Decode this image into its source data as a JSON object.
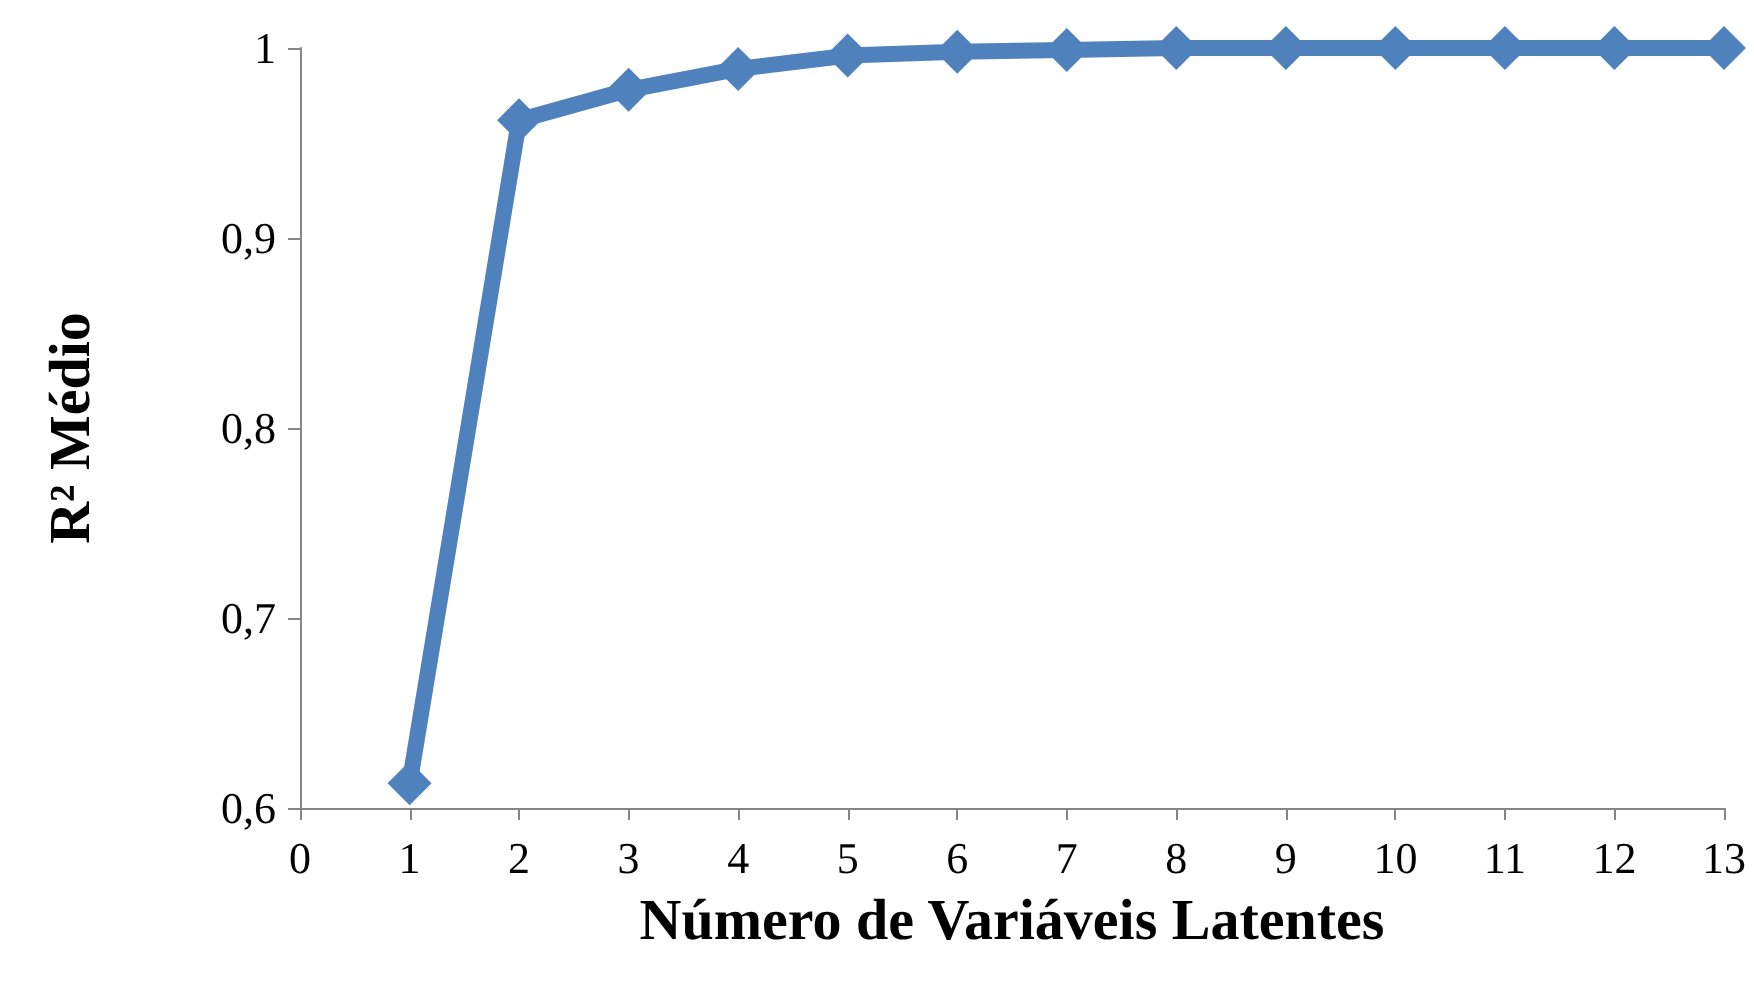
{
  "chart_data": {
    "type": "line",
    "xlabel": "Número de Variáveis Latentes",
    "ylabel": "R² Médio",
    "x": [
      1,
      2,
      3,
      4,
      5,
      6,
      7,
      8,
      9,
      10,
      11,
      12,
      13
    ],
    "series": [
      {
        "color": "#4f81bd",
        "values": [
          0.613,
          0.962,
          0.978,
          0.989,
          0.996,
          0.998,
          0.999,
          1,
          1,
          1,
          1,
          1,
          1
        ]
      }
    ],
    "xlim": [
      0,
      13
    ],
    "xticks": [
      0,
      1,
      2,
      3,
      4,
      5,
      6,
      7,
      8,
      9,
      10,
      11,
      12,
      13
    ],
    "ylim": [
      0.6,
      1
    ],
    "yticks": [
      {
        "value": 0.6,
        "label": "0,6"
      },
      {
        "value": 0.7,
        "label": "0,7"
      },
      {
        "value": 0.8,
        "label": "0,8"
      },
      {
        "value": 0.9,
        "label": "0,9"
      },
      1
    ],
    "grid": false,
    "marker": "diamond",
    "line_style": "solid"
  }
}
